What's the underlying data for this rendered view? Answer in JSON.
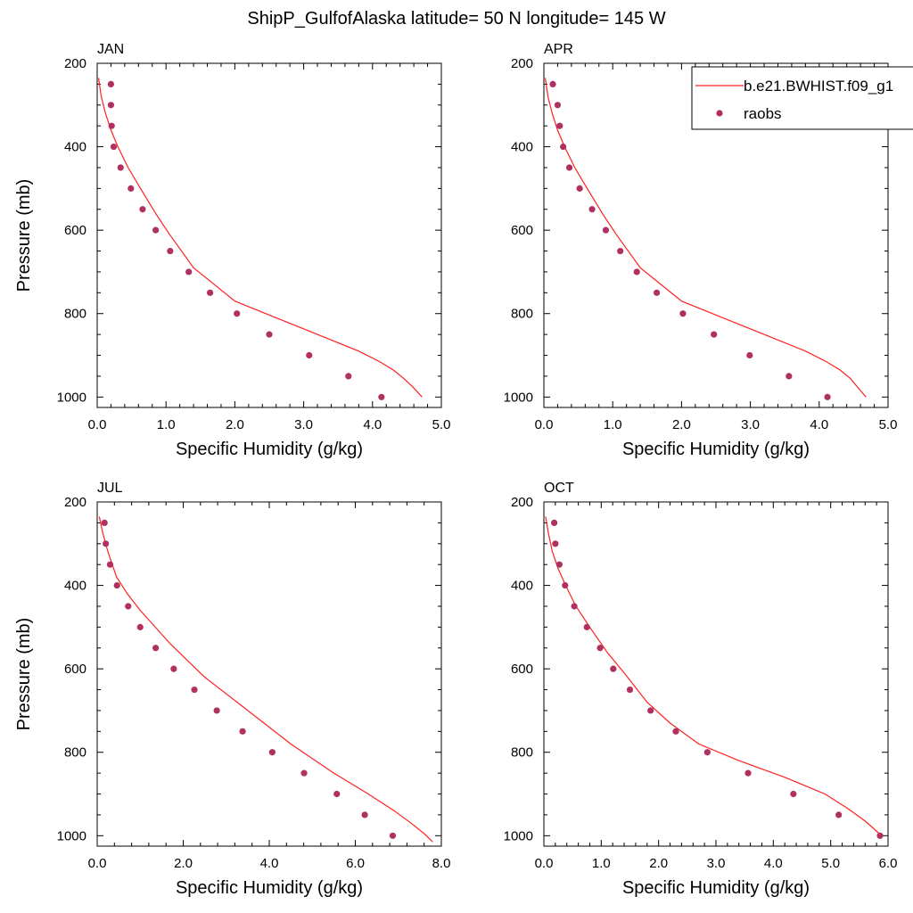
{
  "figure": {
    "title": "ShipP_GulfofAlaska  latitude= 50 N longitude= 145 W"
  },
  "legend": {
    "model_label": "b.e21.BWHIST.f09_g1",
    "obs_label": "raobs"
  },
  "colors": {
    "model_line": "#ff2020",
    "obs_marker": "#b03060"
  },
  "chart_data": [
    {
      "type": "line",
      "month": "JAN",
      "xlabel": "Specific Humidity (g/kg)",
      "ylabel": "Pressure (mb)",
      "xlim": [
        0,
        5
      ],
      "ylim": [
        1025,
        200
      ],
      "y_reversed": true,
      "xticks": [
        "0.0",
        "1.0",
        "2.0",
        "3.0",
        "4.0",
        "5.0"
      ],
      "yticks": [
        "200",
        "400",
        "600",
        "800",
        "1000"
      ],
      "series": [
        {
          "name": "b.e21.BWHIST.f09_g1",
          "kind": "line",
          "x": [
            0.02,
            0.06,
            0.12,
            0.2,
            0.3,
            0.45,
            0.63,
            0.85,
            1.05,
            1.4,
            2.0,
            2.6,
            3.2,
            3.8,
            4.1,
            4.3,
            4.45,
            4.58,
            4.72
          ],
          "y": [
            235,
            280,
            320,
            360,
            400,
            450,
            500,
            560,
            610,
            690,
            770,
            810,
            850,
            890,
            915,
            935,
            955,
            975,
            1000
          ]
        },
        {
          "name": "raobs",
          "kind": "scatter",
          "x": [
            0.2,
            0.2,
            0.21,
            0.24,
            0.34,
            0.49,
            0.66,
            0.85,
            1.06,
            1.33,
            1.64,
            2.03,
            2.5,
            3.08,
            3.65,
            4.13
          ],
          "y": [
            250,
            300,
            350,
            400,
            450,
            500,
            550,
            600,
            650,
            700,
            750,
            800,
            850,
            900,
            950,
            1000
          ]
        }
      ]
    },
    {
      "type": "line",
      "month": "APR",
      "xlabel": "Specific Humidity (g/kg)",
      "ylabel": "",
      "xlim": [
        0,
        5
      ],
      "ylim": [
        1025,
        200
      ],
      "y_reversed": true,
      "xticks": [
        "0.0",
        "1.0",
        "2.0",
        "3.0",
        "4.0",
        "5.0"
      ],
      "yticks": [
        "200",
        "400",
        "600",
        "800",
        "1000"
      ],
      "series": [
        {
          "name": "b.e21.BWHIST.f09_g1",
          "kind": "line",
          "x": [
            0.02,
            0.06,
            0.12,
            0.2,
            0.3,
            0.45,
            0.63,
            0.85,
            1.05,
            1.4,
            2.0,
            2.6,
            3.2,
            3.8,
            4.1,
            4.3,
            4.45,
            4.55,
            4.68
          ],
          "y": [
            235,
            280,
            320,
            360,
            400,
            450,
            500,
            560,
            610,
            690,
            770,
            810,
            850,
            890,
            915,
            935,
            955,
            975,
            1000
          ]
        },
        {
          "name": "raobs",
          "kind": "scatter",
          "x": [
            0.13,
            0.2,
            0.23,
            0.28,
            0.37,
            0.52,
            0.7,
            0.9,
            1.11,
            1.35,
            1.64,
            2.02,
            2.47,
            2.99,
            3.56,
            4.12
          ],
          "y": [
            250,
            300,
            350,
            400,
            450,
            500,
            550,
            600,
            650,
            700,
            750,
            800,
            850,
            900,
            950,
            1000
          ]
        }
      ]
    },
    {
      "type": "line",
      "month": "JUL",
      "xlabel": "Specific Humidity (g/kg)",
      "ylabel": "Pressure (mb)",
      "xlim": [
        0,
        8
      ],
      "ylim": [
        1025,
        200
      ],
      "y_reversed": true,
      "xticks": [
        "0.0",
        "2.0",
        "4.0",
        "6.0",
        "8.0"
      ],
      "yticks": [
        "200",
        "400",
        "600",
        "800",
        "1000"
      ],
      "series": [
        {
          "name": "b.e21.BWHIST.f09_g1",
          "kind": "line",
          "x": [
            0.05,
            0.12,
            0.25,
            0.45,
            0.7,
            1.0,
            1.7,
            2.5,
            3.5,
            4.5,
            5.5,
            6.3,
            6.9,
            7.3,
            7.6,
            7.8
          ],
          "y": [
            235,
            270,
            320,
            380,
            420,
            460,
            540,
            620,
            700,
            780,
            850,
            900,
            940,
            970,
            995,
            1015
          ]
        },
        {
          "name": "raobs",
          "kind": "scatter",
          "x": [
            0.17,
            0.2,
            0.3,
            0.46,
            0.72,
            1.0,
            1.36,
            1.78,
            2.26,
            2.78,
            3.38,
            4.07,
            4.81,
            5.57,
            6.22,
            6.87
          ],
          "y": [
            250,
            300,
            350,
            400,
            450,
            500,
            550,
            600,
            650,
            700,
            750,
            800,
            850,
            900,
            950,
            1000
          ]
        }
      ]
    },
    {
      "type": "line",
      "month": "OCT",
      "xlabel": "Specific Humidity (g/kg)",
      "ylabel": "",
      "xlim": [
        0,
        6
      ],
      "ylim": [
        1025,
        200
      ],
      "y_reversed": true,
      "xticks": [
        "0.0",
        "1.0",
        "2.0",
        "3.0",
        "4.0",
        "5.0",
        "6.0"
      ],
      "yticks": [
        "200",
        "400",
        "600",
        "800",
        "1000"
      ],
      "series": [
        {
          "name": "b.e21.BWHIST.f09_g1",
          "kind": "line",
          "x": [
            0.03,
            0.08,
            0.15,
            0.25,
            0.38,
            0.56,
            0.8,
            1.1,
            1.4,
            1.8,
            2.2,
            2.7,
            3.4,
            4.2,
            4.9,
            5.3,
            5.6,
            5.85
          ],
          "y": [
            235,
            275,
            320,
            360,
            400,
            450,
            500,
            560,
            610,
            680,
            730,
            780,
            820,
            860,
            900,
            935,
            965,
            995
          ]
        },
        {
          "name": "raobs",
          "kind": "scatter",
          "x": [
            0.18,
            0.2,
            0.27,
            0.37,
            0.53,
            0.75,
            0.98,
            1.21,
            1.5,
            1.86,
            2.3,
            2.85,
            3.56,
            4.35,
            5.14,
            5.86
          ],
          "y": [
            250,
            300,
            350,
            400,
            450,
            500,
            550,
            600,
            650,
            700,
            750,
            800,
            850,
            900,
            950,
            1000
          ]
        }
      ]
    }
  ]
}
